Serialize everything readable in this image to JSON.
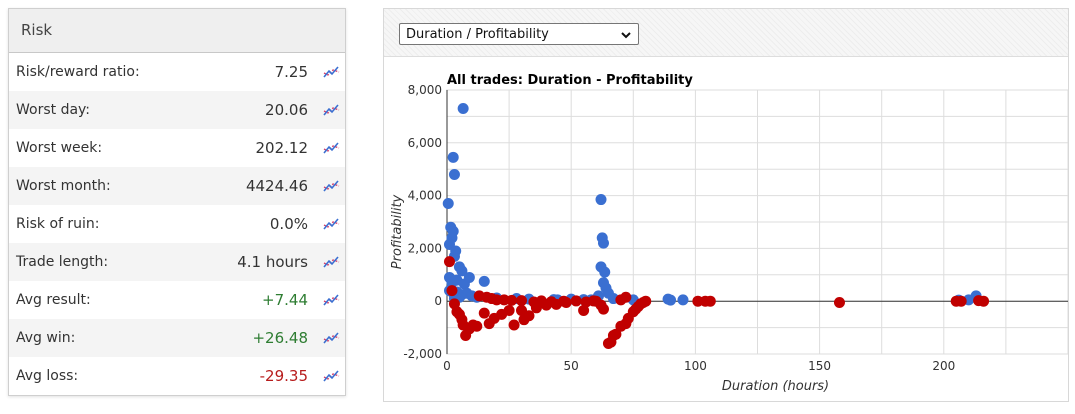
{
  "risk": {
    "title": "Risk",
    "rows": [
      {
        "label": "Risk/reward ratio:",
        "value": "7.25",
        "tone": "neutral"
      },
      {
        "label": "Worst day:",
        "value": "20.06",
        "tone": "neutral"
      },
      {
        "label": "Worst week:",
        "value": "202.12",
        "tone": "neutral"
      },
      {
        "label": "Worst month:",
        "value": "4424.46",
        "tone": "neutral"
      },
      {
        "label": "Risk of ruin:",
        "value": "0.0%",
        "tone": "neutral"
      },
      {
        "label": "Trade length:",
        "value": "4.1 hours",
        "tone": "neutral"
      },
      {
        "label": "Avg result:",
        "value": "+7.44",
        "tone": "positive"
      },
      {
        "label": "Avg win:",
        "value": "+26.48",
        "tone": "positive"
      },
      {
        "label": "Avg loss:",
        "value": "-29.35",
        "tone": "negative"
      }
    ],
    "row_icon": "chart-trend-icon"
  },
  "chart_selector": {
    "selected": "Duration / Profitability",
    "icon": "chevron-down-icon"
  },
  "colors": {
    "win": "#3a6fd1",
    "loss": "#c00000",
    "positive_text": "#2e7d32",
    "negative_text": "#b71c1c"
  },
  "chart_data": {
    "type": "scatter",
    "title": "All trades: Duration - Profitability",
    "xlabel": "Duration (hours)",
    "ylabel": "Profitability",
    "xlim": [
      0,
      250
    ],
    "ylim": [
      -2000,
      8000
    ],
    "x_ticks": [
      0,
      50,
      100,
      150,
      200
    ],
    "x_tick_labels": [
      "0",
      "50",
      "100",
      "150",
      "200"
    ],
    "y_ticks": [
      -2000,
      0,
      2000,
      4000,
      6000,
      8000
    ],
    "y_tick_labels": [
      "-2,000",
      "0",
      "2,000",
      "4,000",
      "6,000",
      "8,000"
    ],
    "grid": true,
    "series": [
      {
        "color": "#3a6fd1",
        "points": [
          [
            6.5,
            7300
          ],
          [
            2.5,
            5450
          ],
          [
            3,
            4800
          ],
          [
            0.5,
            3700
          ],
          [
            1.5,
            2800
          ],
          [
            2.5,
            2650
          ],
          [
            2,
            2400
          ],
          [
            1,
            2150
          ],
          [
            3.5,
            1900
          ],
          [
            3,
            1700
          ],
          [
            5,
            1300
          ],
          [
            6,
            1150
          ],
          [
            1,
            900
          ],
          [
            2,
            700
          ],
          [
            4,
            800
          ],
          [
            7,
            650
          ],
          [
            9,
            900
          ],
          [
            15,
            750
          ],
          [
            1,
            400
          ],
          [
            2.5,
            300
          ],
          [
            4,
            350
          ],
          [
            6,
            250
          ],
          [
            8,
            300
          ],
          [
            10,
            200
          ],
          [
            3,
            100
          ],
          [
            5,
            150
          ],
          [
            12,
            150
          ],
          [
            20,
            120
          ],
          [
            28,
            100
          ],
          [
            33,
            80
          ],
          [
            43,
            60
          ],
          [
            44.5,
            50
          ],
          [
            50,
            80
          ],
          [
            55,
            60
          ],
          [
            58,
            50
          ],
          [
            60,
            80
          ],
          [
            62,
            3850
          ],
          [
            62.5,
            2400
          ],
          [
            63,
            2200
          ],
          [
            62,
            1300
          ],
          [
            63.5,
            1100
          ],
          [
            63,
            700
          ],
          [
            64,
            500
          ],
          [
            65,
            300
          ],
          [
            61,
            200
          ],
          [
            67,
            100
          ],
          [
            75,
            50
          ],
          [
            89,
            80
          ],
          [
            95,
            50
          ],
          [
            90,
            40
          ],
          [
            213,
            200
          ],
          [
            206,
            40
          ],
          [
            210,
            50
          ]
        ]
      },
      {
        "color": "#c00000",
        "points": [
          [
            1,
            1500
          ],
          [
            2,
            400
          ],
          [
            3,
            -100
          ],
          [
            4,
            -400
          ],
          [
            5,
            -500
          ],
          [
            6,
            -700
          ],
          [
            6.5,
            -900
          ],
          [
            7.5,
            -1300
          ],
          [
            9,
            -1050
          ],
          [
            10.5,
            -900
          ],
          [
            12,
            -950
          ],
          [
            15,
            -450
          ],
          [
            17,
            -850
          ],
          [
            19,
            -650
          ],
          [
            22,
            -500
          ],
          [
            25,
            -350
          ],
          [
            27,
            -900
          ],
          [
            31,
            -700
          ],
          [
            33,
            -550
          ],
          [
            30,
            -350
          ],
          [
            36,
            -250
          ],
          [
            40,
            -150
          ],
          [
            44,
            -120
          ],
          [
            48,
            -50
          ],
          [
            13,
            200
          ],
          [
            16,
            150
          ],
          [
            18,
            100
          ],
          [
            20,
            50
          ],
          [
            23,
            50
          ],
          [
            26,
            30
          ],
          [
            30,
            20
          ],
          [
            35,
            -30
          ],
          [
            38,
            10
          ],
          [
            42,
            -20
          ],
          [
            47,
            0
          ],
          [
            52,
            10
          ],
          [
            56,
            -30
          ],
          [
            60,
            0
          ],
          [
            55,
            -350
          ],
          [
            59,
            10
          ],
          [
            62,
            -150
          ],
          [
            63,
            -300
          ],
          [
            65,
            -1600
          ],
          [
            66,
            -1550
          ],
          [
            67,
            -1300
          ],
          [
            68,
            -1250
          ],
          [
            70,
            -950
          ],
          [
            72,
            -850
          ],
          [
            73,
            -650
          ],
          [
            75,
            -400
          ],
          [
            76,
            -300
          ],
          [
            77,
            -200
          ],
          [
            78,
            -100
          ],
          [
            79,
            -50
          ],
          [
            80,
            0
          ],
          [
            70,
            50
          ],
          [
            72,
            150
          ],
          [
            101,
            0
          ],
          [
            104,
            0
          ],
          [
            106,
            0
          ],
          [
            158,
            -50
          ],
          [
            205,
            0
          ],
          [
            207,
            0
          ],
          [
            214,
            20
          ],
          [
            216,
            0
          ]
        ]
      }
    ]
  }
}
